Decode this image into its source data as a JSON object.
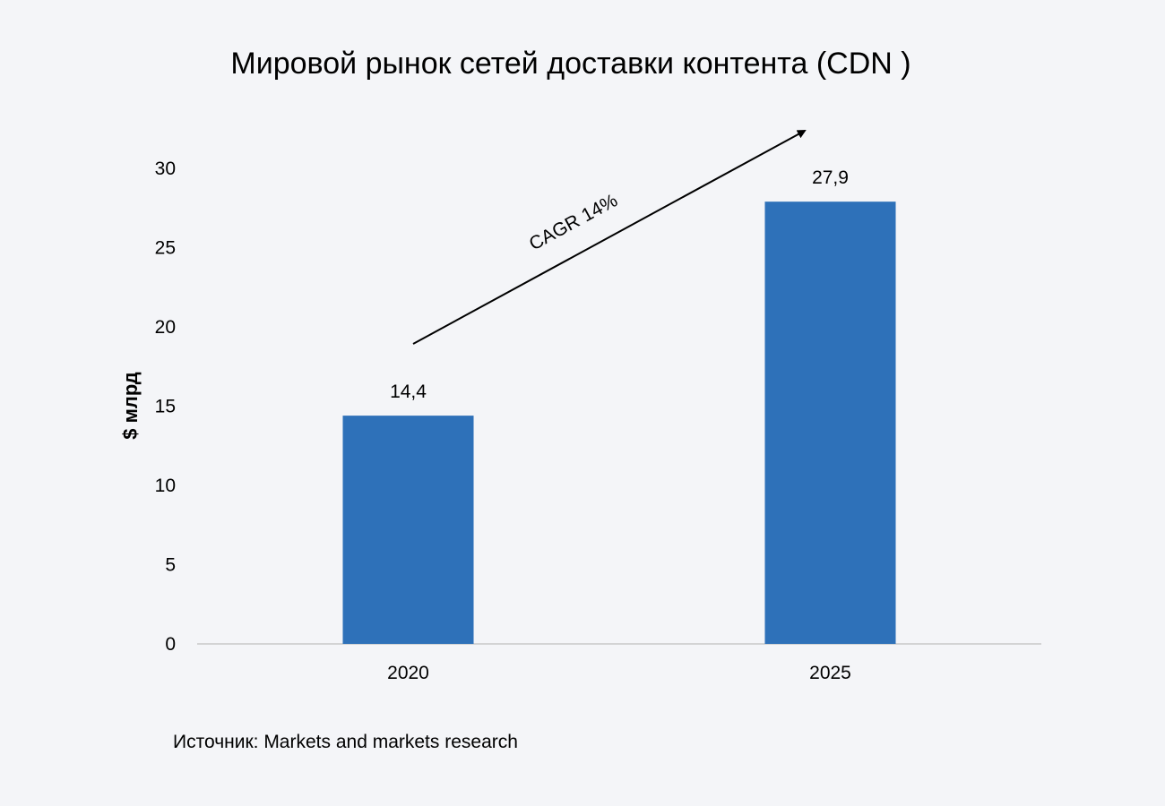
{
  "chart_data": {
    "type": "bar",
    "title": "Мировой рынок сетей доставки контента (CDN )",
    "categories": [
      "2020",
      "2025"
    ],
    "values": [
      14.4,
      27.9
    ],
    "value_labels": [
      "14,4",
      "27,9"
    ],
    "xlabel": "",
    "ylabel": "$ млрд",
    "ylim": [
      0,
      30
    ],
    "yticks": [
      0,
      5,
      10,
      15,
      20,
      25,
      30
    ],
    "grid": false,
    "bar_color": "#2e71b9",
    "annotation": "CAGR 14%",
    "source": "Источник: Markets and markets research"
  }
}
